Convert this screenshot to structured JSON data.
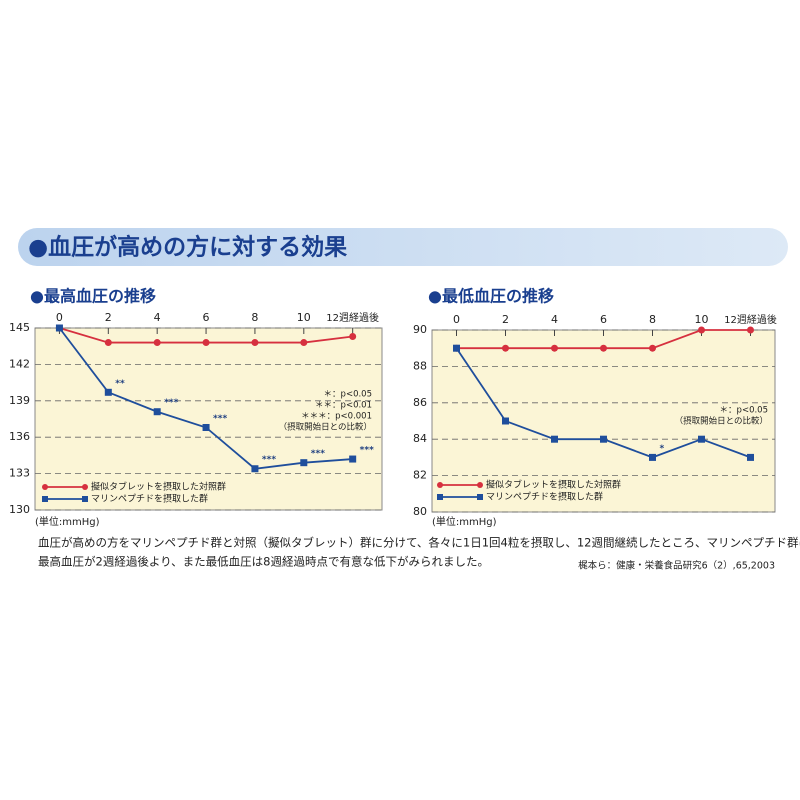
{
  "header": {
    "title": "●血圧が高めの方に対する効果"
  },
  "chart_data": [
    {
      "type": "line",
      "title": "●最高血圧の推移",
      "y_unit": "(単位:mmHg)",
      "x": [
        0,
        2,
        4,
        6,
        8,
        10,
        12
      ],
      "xlim": [
        -1,
        13.2
      ],
      "xticks": [
        0,
        2,
        4,
        6,
        8,
        10,
        {
          "value": 12,
          "label": "12週経過後"
        }
      ],
      "ylim": [
        130,
        145
      ],
      "yticks": [
        130,
        133,
        136,
        139,
        142,
        145
      ],
      "grid": true,
      "series": [
        {
          "name": "擬似タブレットを摂取した対照群",
          "color": "#d6303f",
          "marker": "circle",
          "values": [
            145,
            143.8,
            143.8,
            143.8,
            143.8,
            143.8,
            144.3
          ]
        },
        {
          "name": "マリンペプチドを摂取した群",
          "color": "#1f4e9c",
          "marker": "square",
          "values": [
            145,
            139.7,
            138.1,
            136.8,
            133.4,
            133.9,
            134.2
          ],
          "annotations": [
            null,
            "**",
            "***",
            "***",
            "***",
            "***",
            "***"
          ]
        }
      ],
      "notes": [
        "＊：p<0.05",
        "＊＊：p<0.01",
        "＊＊＊：p<0.001",
        "（摂取開始日との比較）"
      ]
    },
    {
      "type": "line",
      "title": "●最低血圧の推移",
      "y_unit": "(単位:mmHg)",
      "x": [
        0,
        2,
        4,
        6,
        8,
        10,
        12
      ],
      "xlim": [
        -1,
        13
      ],
      "xticks": [
        0,
        2,
        4,
        6,
        8,
        10,
        {
          "value": 12,
          "label": "12週経過後"
        }
      ],
      "ylim": [
        80,
        90
      ],
      "yticks": [
        80,
        82,
        84,
        86,
        88,
        90
      ],
      "grid": true,
      "series": [
        {
          "name": "擬似タブレットを摂取した対照群",
          "color": "#d6303f",
          "marker": "circle",
          "values": [
            89,
            89,
            89,
            89,
            89,
            90,
            90
          ]
        },
        {
          "name": "マリンペプチドを摂取した群",
          "color": "#1f4e9c",
          "marker": "square",
          "values": [
            89,
            85,
            84,
            84,
            83,
            84,
            83
          ],
          "annotations": [
            null,
            null,
            null,
            null,
            "*",
            null,
            null
          ]
        }
      ],
      "notes": [
        "＊：p<0.05",
        "（摂取開始日との比較）"
      ]
    }
  ],
  "caption": [
    "血圧が高めの方をマリンペプチド群と対照（擬似タブレット）群に分けて、各々に1日1回4粒を摂取し、12週間継続したところ、マリンペプチド群は",
    "最高血圧が2週経過後より、また最低血圧は8週経過時点で有意な低下がみられました。"
  ],
  "citation": "梶本ら：健康・栄養食品研究6（2）,65,2003"
}
